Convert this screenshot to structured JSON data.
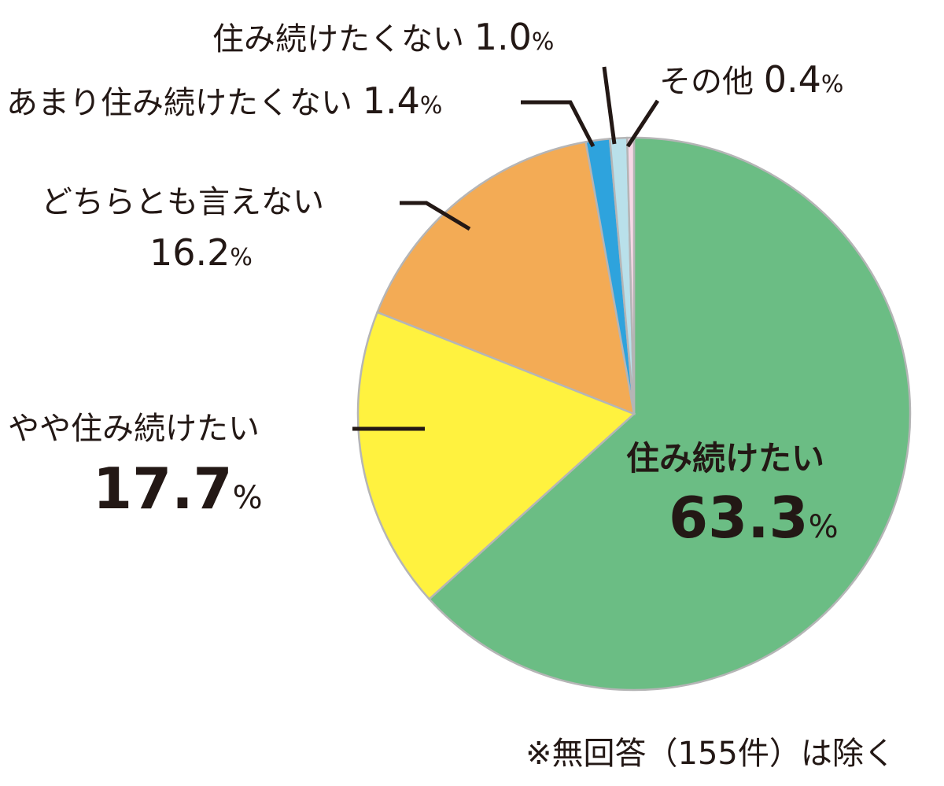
{
  "chart_data": {
    "type": "pie",
    "title": "",
    "categories": [
      "住み続けたい",
      "やや住み続けたい",
      "どちらとも言えない",
      "あまり住み続けたくない",
      "住み続けたくない",
      "その他"
    ],
    "values": [
      63.3,
      17.7,
      16.2,
      1.4,
      1.0,
      0.4
    ],
    "unit": "%",
    "colors": [
      "#6bbd84",
      "#fff23f",
      "#f3ab55",
      "#2ea3dd",
      "#b9e0ea",
      "#f7d8e6"
    ],
    "start_angle": "12 o'clock, clockwise order: 住み続けたい first",
    "legend": "none (direct labels with leader lines)",
    "footnote": "※無回答（155件）は除く"
  },
  "labels": {
    "l0": {
      "name": "住み続けたい",
      "value": "63.3",
      "unit": "%"
    },
    "l1": {
      "name": "やや住み続けたい",
      "value": "17.7",
      "unit": "%"
    },
    "l2": {
      "name": "どちらとも言えない",
      "value": "16.2",
      "unit": "%"
    },
    "l3": {
      "name": "あまり住み続けたくない",
      "value": "1.4",
      "unit": "%"
    },
    "l4": {
      "name": "住み続けたくない",
      "value": "1.0",
      "unit": "%"
    },
    "l5": {
      "name": "その他",
      "value": "0.4",
      "unit": "%"
    }
  },
  "footnote": "※無回答（155件）は除く"
}
